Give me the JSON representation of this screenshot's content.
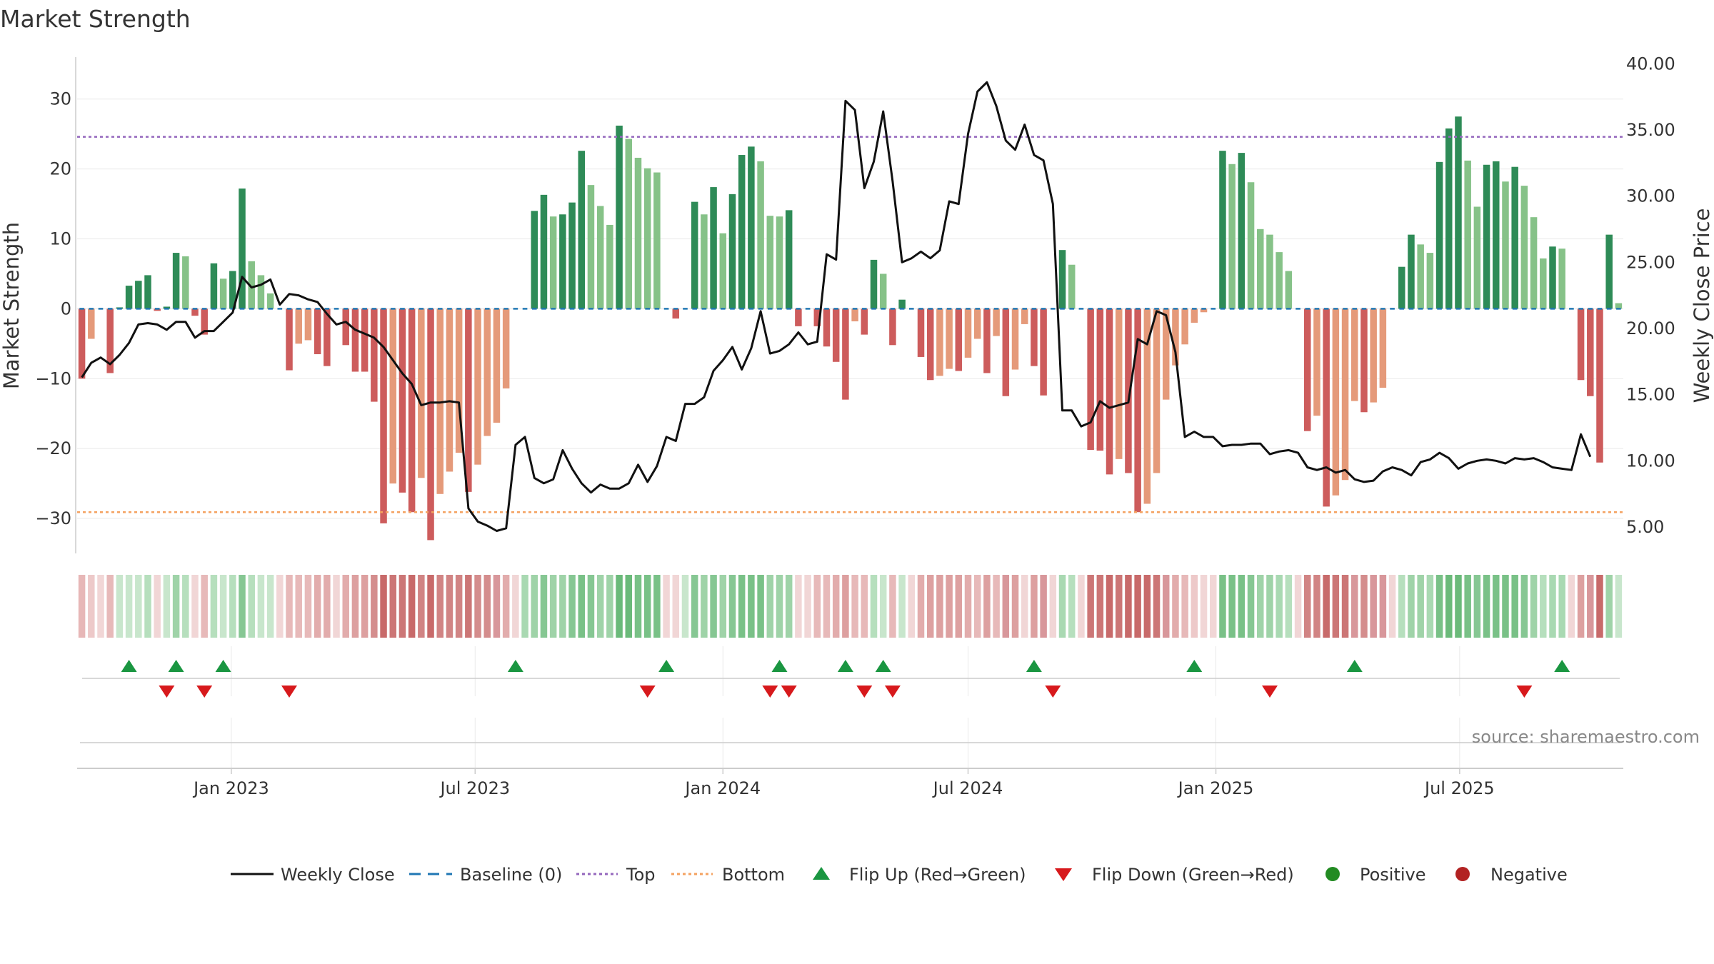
{
  "chart_data": {
    "type": "bar",
    "title": "Market Strength",
    "source": "source: sharemaestro.com",
    "left_axis": {
      "label": "Market Strength",
      "range": [
        -35,
        36
      ],
      "ticks": [
        "30",
        "20",
        "10",
        "0",
        "−10",
        "−20",
        "−30"
      ],
      "tick_values": [
        30,
        20,
        10,
        0,
        -10,
        -20,
        -30
      ]
    },
    "right_axis": {
      "label": "Weekly Close Price",
      "range": [
        3.0,
        40.5
      ],
      "ticks": [
        "40.00",
        "35.00",
        "30.00",
        "25.00",
        "20.00",
        "15.00",
        "10.00",
        "5.00"
      ],
      "tick_values": [
        40,
        35,
        30,
        25,
        20,
        15,
        10,
        5
      ]
    },
    "x_axis": {
      "start": "2022-09-12",
      "week_days": 7,
      "ticks": [
        "Jan 2023",
        "Jul 2023",
        "Jan 2024",
        "Jul 2024",
        "Jan 2025",
        "Jul 2025"
      ],
      "tick_dates": [
        "2023-01-01",
        "2023-07-01",
        "2024-01-01",
        "2024-07-01",
        "2025-01-01",
        "2025-07-01"
      ]
    },
    "reference_lines": {
      "top": 24.6,
      "bottom": -29.1,
      "baseline": 0
    },
    "strength": [
      -10,
      -4.3,
      0,
      -9.2,
      0.2,
      3.3,
      4,
      4.8,
      -0.3,
      0.3,
      8,
      7.5,
      -1,
      -3.7,
      6.5,
      4.3,
      5.4,
      17.2,
      6.8,
      4.8,
      2.2,
      0,
      -8.8,
      -5,
      -4.5,
      -6.5,
      -8.2,
      0,
      -5.2,
      -9,
      -9,
      -13.3,
      -30.7,
      -25,
      -26.3,
      -29.1,
      -24.2,
      -33.1,
      -26.5,
      -23.3,
      -20.6,
      -26.2,
      -22.3,
      -18.2,
      -16.3,
      -11.4,
      0,
      0,
      14,
      16.3,
      13.2,
      13.5,
      15.2,
      22.6,
      17.7,
      14.7,
      12,
      26.2,
      24.3,
      21.6,
      20.1,
      19.5,
      0,
      -1.4,
      0,
      15.3,
      13.5,
      17.4,
      10.8,
      16.4,
      22,
      23.2,
      21.1,
      13.3,
      13.2,
      14.1,
      -2.5,
      0,
      -2.5,
      -5.4,
      -7.6,
      -13,
      -1.8,
      -3.7,
      7,
      5,
      -5.2,
      1.3,
      0,
      -6.9,
      -10.2,
      -9.6,
      -8.6,
      -8.9,
      -7,
      -4.3,
      -9.2,
      -3.9,
      -12.5,
      -8.7,
      -2.2,
      -8.2,
      -12.4,
      0,
      8.4,
      6.3,
      0,
      -20.2,
      -20.3,
      -23.7,
      -21.5,
      -23.5,
      -29.1,
      -27.9,
      -23.5,
      -13,
      -8.1,
      -5.1,
      -2,
      -0.5,
      0,
      22.6,
      20.7,
      22.3,
      18.1,
      11.4,
      10.6,
      8.1,
      5.4,
      0,
      -17.5,
      -15.3,
      -28.3,
      -26.7,
      -24.5,
      -13.2,
      -14.8,
      -13.4,
      -11.3,
      0,
      6,
      10.6,
      9.2,
      8,
      21,
      25.8,
      27.5,
      21.2,
      14.6,
      20.6,
      21.1,
      18.2,
      20.3,
      17.6,
      13.1,
      7.2,
      8.9,
      8.6,
      0,
      -10.2,
      -12.5,
      -22,
      10.6,
      0.8
    ],
    "weekly_close": [
      16.3,
      17.4,
      17.8,
      17.3,
      18,
      18.9,
      20.3,
      20.4,
      20.3,
      19.9,
      20.5,
      20.5,
      19.3,
      19.8,
      19.8,
      20.5,
      21.2,
      23.9,
      23.1,
      23.3,
      23.7,
      21.8,
      22.6,
      22.5,
      22.2,
      22,
      21.1,
      20.3,
      20.5,
      19.9,
      19.6,
      19.3,
      18.6,
      17.6,
      16.6,
      15.8,
      14.2,
      14.4,
      14.4,
      14.5,
      14.4,
      6.4,
      5.4,
      5.1,
      4.7,
      4.9,
      11.2,
      11.8,
      8.7,
      8.3,
      8.6,
      10.8,
      9.4,
      8.3,
      7.6,
      8.2,
      7.9,
      7.9,
      8.3,
      9.7,
      8.4,
      9.6,
      11.8,
      11.5,
      14.3,
      14.3,
      14.8,
      16.8,
      17.6,
      18.6,
      16.9,
      18.5,
      21.3,
      18.1,
      18.3,
      18.8,
      19.7,
      18.8,
      19,
      25.6,
      25.2,
      37.2,
      36.5,
      30.6,
      32.6,
      36.4,
      31.1,
      25,
      25.3,
      25.8,
      25.3,
      25.9,
      29.6,
      29.4,
      34.7,
      37.9,
      38.6,
      36.8,
      34.2,
      33.5,
      35.4,
      33.1,
      32.7,
      29.4,
      13.8,
      13.8,
      12.6,
      12.9,
      14.5,
      14,
      14.2,
      14.4,
      19.2,
      18.8,
      21.3,
      21,
      18.2,
      11.8,
      12.2,
      11.8,
      11.8,
      11.1,
      11.2,
      11.2,
      11.3,
      11.3,
      10.5,
      10.7,
      10.8,
      10.6,
      9.5,
      9.3,
      9.5,
      9.1,
      9.3,
      8.6,
      8.4,
      8.5,
      9.2,
      9.5,
      9.3,
      8.9,
      9.9,
      10.1,
      10.6,
      10.2,
      9.4,
      9.8,
      10,
      10.1,
      10,
      9.8,
      10.2,
      10.1,
      10.2,
      9.9,
      9.5,
      9.4,
      9.3,
      12,
      10.3
    ],
    "color_strip": [
      "#e7b7b7",
      "#edc9c9",
      "#f1d6d6",
      "#e7b9b9",
      "#c8e6cc",
      "#c8e6cc",
      "#c8e6cc",
      "#b6dfbd",
      "#f1d6d6",
      "#c8e6cc",
      "#9fd3a8",
      "#b6dfbd",
      "#f1d6d6",
      "#e7b9b9",
      "#b6dfbd",
      "#c8e6cc",
      "#b6dfbd",
      "#86c793",
      "#b6dfbd",
      "#c8e6cc",
      "#c8e6cc",
      "#f1d6d6",
      "#e7b9b9",
      "#e7b9b9",
      "#e7b9b9",
      "#e2acac",
      "#e2acac",
      "#f1d6d6",
      "#e2acac",
      "#dda0a0",
      "#dda0a0",
      "#d48d8d",
      "#c86a6a",
      "#cc7676",
      "#cc7676",
      "#c86a6a",
      "#d18484",
      "#c86a6a",
      "#d18484",
      "#d18484",
      "#d18484",
      "#cc7676",
      "#d48d8d",
      "#d48d8d",
      "#d8979b",
      "#e2acac",
      "#f1d6d6",
      "#a9d9b2",
      "#9fd3a8",
      "#86c793",
      "#9fd3a8",
      "#9fd3a8",
      "#86c793",
      "#79c187",
      "#86c793",
      "#9fd3a8",
      "#9fd3a8",
      "#6bba7a",
      "#6bba7a",
      "#79c187",
      "#79c187",
      "#79c187",
      "#f1d6d6",
      "#f1d6d6",
      "#c8e6cc",
      "#86c793",
      "#9fd3a8",
      "#86c793",
      "#9fd3a8",
      "#86c793",
      "#79c187",
      "#79c187",
      "#79c187",
      "#9fd3a8",
      "#9fd3a8",
      "#9fd3a8",
      "#f1d6d6",
      "#f1d6d6",
      "#e7b9b9",
      "#e7b9b9",
      "#e2acac",
      "#dda0a0",
      "#e7b9b9",
      "#e7b9b9",
      "#b6dfbd",
      "#c8e6cc",
      "#e7b9b9",
      "#c8e6cc",
      "#f1d6d6",
      "#e2acac",
      "#dda0a0",
      "#dda0a0",
      "#dda0a0",
      "#dda0a0",
      "#e2acac",
      "#e7b9b9",
      "#dda0a0",
      "#e7b9b9",
      "#d8979b",
      "#dda0a0",
      "#f1d6d6",
      "#dda0a0",
      "#d8979b",
      "#f1d6d6",
      "#a9d9b2",
      "#b6dfbd",
      "#f1d6d6",
      "#cc7676",
      "#cc7676",
      "#c86a6a",
      "#cc7676",
      "#c86a6a",
      "#c86a6a",
      "#c86a6a",
      "#cc7676",
      "#d8979b",
      "#e2acac",
      "#e7b9b9",
      "#edc9c9",
      "#f1d6d6",
      "#f1d6d6",
      "#79c187",
      "#79c187",
      "#79c187",
      "#86c793",
      "#9fd3a8",
      "#9fd3a8",
      "#a9d9b2",
      "#b6dfbd",
      "#f1d6d6",
      "#d18484",
      "#d18484",
      "#c86a6a",
      "#cc7676",
      "#cc7676",
      "#d8979b",
      "#d48d8d",
      "#d8979b",
      "#d8979b",
      "#f1d6d6",
      "#b6dfbd",
      "#9fd3a8",
      "#9fd3a8",
      "#a9d9b2",
      "#79c187",
      "#6bba7a",
      "#6bba7a",
      "#79c187",
      "#86c793",
      "#79c187",
      "#79c187",
      "#79c187",
      "#79c187",
      "#86c793",
      "#9fd3a8",
      "#b6dfbd",
      "#a9d9b2",
      "#a9d9b2",
      "#f1d6d6",
      "#dda0a0",
      "#d8979b",
      "#c86a6a",
      "#9fd3a8",
      "#c8e6cc"
    ],
    "flip_up_weeks": [
      5,
      10,
      15,
      46,
      62,
      74,
      81,
      85,
      101,
      118,
      135,
      157
    ],
    "flip_down_weeks": [
      9,
      13,
      22,
      60,
      73,
      75,
      83,
      86,
      103,
      126,
      153
    ],
    "legend": [
      {
        "key": "weekly_close",
        "label": "Weekly Close"
      },
      {
        "key": "baseline",
        "label": "Baseline (0)"
      },
      {
        "key": "top",
        "label": "Top"
      },
      {
        "key": "bottom",
        "label": "Bottom"
      },
      {
        "key": "flip_up",
        "label": "Flip Up (Red→Green)"
      },
      {
        "key": "flip_down",
        "label": "Flip Down (Green→Red)"
      },
      {
        "key": "positive",
        "label": "Positive"
      },
      {
        "key": "negative",
        "label": "Negative"
      }
    ],
    "colors": {
      "pos_strong": "#2e8b57",
      "pos_light": "#86c288",
      "neg_strong": "#cd5c5c",
      "neg_light": "#e59a7a",
      "close_line": "#111111",
      "baseline": "#1f77b4",
      "top": "#9467bd",
      "bottom": "#f4a261",
      "flip_up": "#1a9641",
      "flip_down": "#d7191c",
      "positive_dot": "#228b22",
      "negative_dot": "#b22222",
      "grid": "#e9e9e9",
      "axis": "#cccccc"
    }
  }
}
